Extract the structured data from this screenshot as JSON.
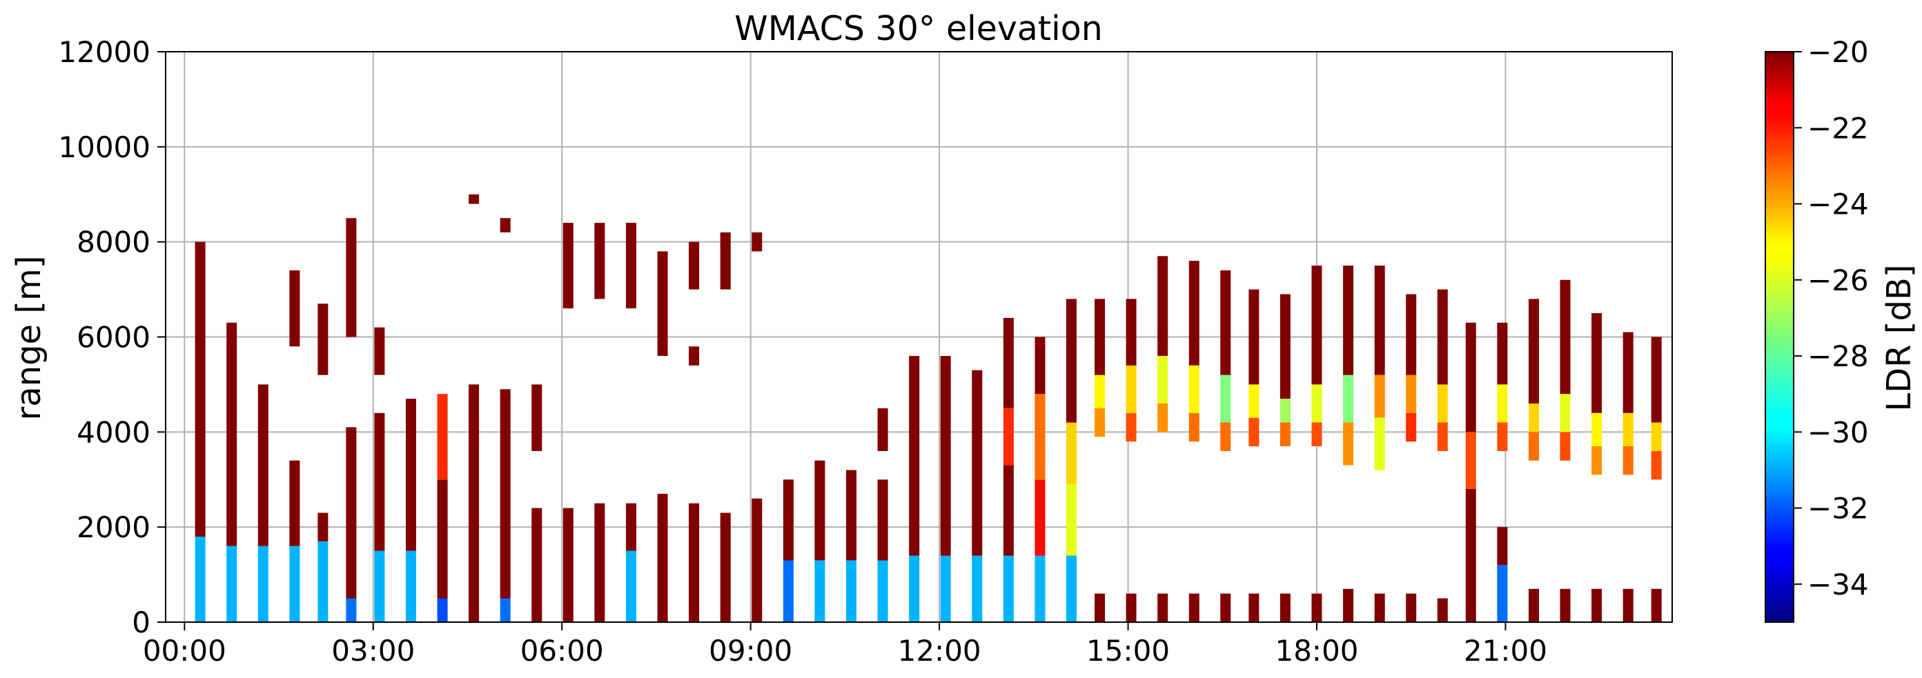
{
  "chart_data": {
    "type": "heatmap",
    "title": "WMACS 30° elevation",
    "xlabel": "",
    "ylabel": "range [m]",
    "x_ticks": [
      {
        "hour": 0,
        "label": "00:00"
      },
      {
        "hour": 3,
        "label": "03:00"
      },
      {
        "hour": 6,
        "label": "06:00"
      },
      {
        "hour": 9,
        "label": "09:00"
      },
      {
        "hour": 12,
        "label": "12:00"
      },
      {
        "hour": 15,
        "label": "15:00"
      },
      {
        "hour": 18,
        "label": "18:00"
      },
      {
        "hour": 21,
        "label": "21:00"
      }
    ],
    "xlim_hours": [
      -0.3,
      23.65
    ],
    "ylim": [
      0,
      12000
    ],
    "y_ticks": [
      {
        "value": 0,
        "label": "0"
      },
      {
        "value": 2000,
        "label": "2000"
      },
      {
        "value": 4000,
        "label": "4000"
      },
      {
        "value": 6000,
        "label": "6000"
      },
      {
        "value": 8000,
        "label": "8000"
      },
      {
        "value": 10000,
        "label": "10000"
      },
      {
        "value": 12000,
        "label": "12000"
      }
    ],
    "grid": true,
    "colorbar": {
      "label": "LDR [dB]",
      "range": [
        -35,
        -20
      ],
      "ticks": [
        {
          "value": -20,
          "label": "−20"
        },
        {
          "value": -22,
          "label": "−22"
        },
        {
          "value": -24,
          "label": "−24"
        },
        {
          "value": -26,
          "label": "−26"
        },
        {
          "value": -28,
          "label": "−28"
        },
        {
          "value": -30,
          "label": "−30"
        },
        {
          "value": -32,
          "label": "−32"
        },
        {
          "value": -34,
          "label": "−34"
        }
      ]
    },
    "profiles_note": "approximate vertical scan columns; each segment is [start_m, end_m, LDR_dB]",
    "profiles": [
      {
        "t": 0.25,
        "segments": [
          [
            0,
            1800,
            -30.5
          ],
          [
            1800,
            8000,
            -20
          ]
        ]
      },
      {
        "t": 0.75,
        "segments": [
          [
            0,
            1600,
            -30.5
          ],
          [
            1600,
            6300,
            -20
          ]
        ]
      },
      {
        "t": 1.25,
        "segments": [
          [
            0,
            1600,
            -30.5
          ],
          [
            1600,
            5000,
            -20
          ]
        ]
      },
      {
        "t": 1.75,
        "segments": [
          [
            0,
            1600,
            -30.5
          ],
          [
            1600,
            3400,
            -20
          ],
          [
            5800,
            7400,
            -20
          ]
        ]
      },
      {
        "t": 2.2,
        "segments": [
          [
            0,
            1700,
            -30.5
          ],
          [
            1700,
            2300,
            -20
          ],
          [
            5200,
            6700,
            -20
          ]
        ]
      },
      {
        "t": 2.65,
        "segments": [
          [
            0,
            500,
            -31.5
          ],
          [
            500,
            4100,
            -20
          ],
          [
            6000,
            8500,
            -20
          ]
        ]
      },
      {
        "t": 3.1,
        "segments": [
          [
            0,
            1500,
            -30.5
          ],
          [
            1500,
            4400,
            -20
          ],
          [
            5200,
            6200,
            -20
          ]
        ]
      },
      {
        "t": 3.6,
        "segments": [
          [
            0,
            1500,
            -30.5
          ],
          [
            1500,
            4700,
            -20
          ]
        ]
      },
      {
        "t": 4.1,
        "segments": [
          [
            0,
            500,
            -32
          ],
          [
            500,
            3000,
            -20
          ],
          [
            3000,
            4800,
            -22.5
          ]
        ]
      },
      {
        "t": 4.6,
        "segments": [
          [
            0,
            5000,
            -20
          ],
          [
            8800,
            9000,
            -20
          ]
        ]
      },
      {
        "t": 5.1,
        "segments": [
          [
            0,
            500,
            -31.5
          ],
          [
            500,
            4900,
            -20
          ],
          [
            8200,
            8500,
            -20
          ]
        ]
      },
      {
        "t": 5.6,
        "segments": [
          [
            0,
            2400,
            -20
          ],
          [
            3600,
            5000,
            -20
          ]
        ]
      },
      {
        "t": 6.1,
        "segments": [
          [
            0,
            2400,
            -20
          ],
          [
            6600,
            8400,
            -20
          ]
        ]
      },
      {
        "t": 6.6,
        "segments": [
          [
            0,
            2500,
            -20
          ],
          [
            6800,
            8400,
            -20
          ]
        ]
      },
      {
        "t": 7.1,
        "segments": [
          [
            0,
            1500,
            -30.5
          ],
          [
            1500,
            2500,
            -20
          ],
          [
            6600,
            8400,
            -20
          ]
        ]
      },
      {
        "t": 7.6,
        "segments": [
          [
            0,
            2700,
            -20
          ],
          [
            5600,
            7800,
            -20
          ]
        ]
      },
      {
        "t": 8.1,
        "segments": [
          [
            0,
            2500,
            -20
          ],
          [
            5400,
            5800,
            -20
          ],
          [
            7000,
            8000,
            -20
          ]
        ]
      },
      {
        "t": 8.6,
        "segments": [
          [
            0,
            2300,
            -20
          ],
          [
            7000,
            8200,
            -20
          ]
        ]
      },
      {
        "t": 9.1,
        "segments": [
          [
            0,
            2600,
            -20
          ],
          [
            7800,
            8200,
            -20
          ]
        ]
      },
      {
        "t": 9.6,
        "segments": [
          [
            0,
            1300,
            -31.5
          ],
          [
            1300,
            3000,
            -20
          ]
        ]
      },
      {
        "t": 10.1,
        "segments": [
          [
            0,
            1300,
            -30.5
          ],
          [
            1300,
            3400,
            -20
          ]
        ]
      },
      {
        "t": 10.6,
        "segments": [
          [
            0,
            1300,
            -30.5
          ],
          [
            1300,
            3200,
            -20
          ]
        ]
      },
      {
        "t": 11.1,
        "segments": [
          [
            0,
            1300,
            -30.5
          ],
          [
            1300,
            3000,
            -20
          ],
          [
            3600,
            4500,
            -20
          ]
        ]
      },
      {
        "t": 11.6,
        "segments": [
          [
            0,
            1400,
            -30.5
          ],
          [
            1400,
            5600,
            -20
          ]
        ]
      },
      {
        "t": 12.1,
        "segments": [
          [
            0,
            1400,
            -30.5
          ],
          [
            1400,
            5600,
            -20
          ]
        ]
      },
      {
        "t": 12.6,
        "segments": [
          [
            0,
            1400,
            -30.5
          ],
          [
            1400,
            5300,
            -20
          ]
        ]
      },
      {
        "t": 13.1,
        "segments": [
          [
            0,
            1400,
            -30.5
          ],
          [
            1400,
            3300,
            -20
          ],
          [
            3300,
            4500,
            -22.5
          ],
          [
            4500,
            6400,
            -20
          ]
        ]
      },
      {
        "t": 13.6,
        "segments": [
          [
            0,
            1400,
            -30.5
          ],
          [
            1400,
            3000,
            -22
          ],
          [
            3000,
            4800,
            -23.5
          ],
          [
            4800,
            6000,
            -20
          ]
        ]
      },
      {
        "t": 14.1,
        "segments": [
          [
            0,
            1400,
            -30.5
          ],
          [
            1400,
            2900,
            -26
          ],
          [
            2900,
            4200,
            -25
          ],
          [
            4200,
            6800,
            -20
          ]
        ]
      },
      {
        "t": 14.55,
        "segments": [
          [
            0,
            600,
            -20
          ],
          [
            3900,
            4500,
            -24
          ],
          [
            4500,
            5200,
            -25.5
          ],
          [
            5200,
            6800,
            -20
          ]
        ]
      },
      {
        "t": 15.05,
        "segments": [
          [
            0,
            600,
            -20
          ],
          [
            3800,
            4400,
            -23
          ],
          [
            4400,
            5400,
            -25
          ],
          [
            5400,
            6800,
            -20
          ]
        ]
      },
      {
        "t": 15.55,
        "segments": [
          [
            0,
            600,
            -20
          ],
          [
            4000,
            4600,
            -24
          ],
          [
            4600,
            5600,
            -26
          ],
          [
            5600,
            7700,
            -20
          ]
        ]
      },
      {
        "t": 16.05,
        "segments": [
          [
            0,
            600,
            -20
          ],
          [
            3800,
            4400,
            -23.5
          ],
          [
            4400,
            5400,
            -25.5
          ],
          [
            5400,
            7600,
            -20
          ]
        ]
      },
      {
        "t": 16.55,
        "segments": [
          [
            0,
            600,
            -20
          ],
          [
            3600,
            4200,
            -23.5
          ],
          [
            4200,
            5200,
            -27.5
          ],
          [
            5200,
            7400,
            -20
          ]
        ]
      },
      {
        "t": 17.0,
        "segments": [
          [
            0,
            600,
            -20
          ],
          [
            3700,
            4300,
            -23
          ],
          [
            4300,
            5000,
            -25.5
          ],
          [
            5000,
            7000,
            -20
          ]
        ]
      },
      {
        "t": 17.5,
        "segments": [
          [
            0,
            600,
            -20
          ],
          [
            3700,
            4200,
            -23.5
          ],
          [
            4200,
            4700,
            -27
          ],
          [
            4700,
            6900,
            -20
          ]
        ]
      },
      {
        "t": 18.0,
        "segments": [
          [
            0,
            600,
            -20
          ],
          [
            3700,
            4200,
            -23
          ],
          [
            4200,
            5000,
            -26
          ],
          [
            5000,
            7500,
            -20
          ]
        ]
      },
      {
        "t": 18.5,
        "segments": [
          [
            0,
            700,
            -20
          ],
          [
            3300,
            4200,
            -24
          ],
          [
            4200,
            5200,
            -27.5
          ],
          [
            5200,
            7500,
            -20
          ]
        ]
      },
      {
        "t": 19.0,
        "segments": [
          [
            0,
            600,
            -20
          ],
          [
            3200,
            4300,
            -26
          ],
          [
            4300,
            5200,
            -24
          ],
          [
            5200,
            7500,
            -20
          ]
        ]
      },
      {
        "t": 19.5,
        "segments": [
          [
            0,
            600,
            -20
          ],
          [
            3800,
            4400,
            -22.5
          ],
          [
            4400,
            5200,
            -24
          ],
          [
            5200,
            6900,
            -20
          ]
        ]
      },
      {
        "t": 20.0,
        "segments": [
          [
            0,
            500,
            -20
          ],
          [
            3600,
            4200,
            -23
          ],
          [
            4200,
            5000,
            -25
          ],
          [
            5000,
            7000,
            -20
          ]
        ]
      },
      {
        "t": 20.45,
        "segments": [
          [
            0,
            2800,
            -20
          ],
          [
            2800,
            4000,
            -23
          ],
          [
            4000,
            6300,
            -20
          ]
        ]
      },
      {
        "t": 20.95,
        "segments": [
          [
            0,
            1200,
            -31.5
          ],
          [
            1200,
            2000,
            -20
          ],
          [
            3600,
            4200,
            -23
          ],
          [
            4200,
            5000,
            -25.5
          ],
          [
            5000,
            6300,
            -20
          ]
        ]
      },
      {
        "t": 21.45,
        "segments": [
          [
            0,
            700,
            -20
          ],
          [
            3400,
            4000,
            -23.5
          ],
          [
            4000,
            4600,
            -25
          ],
          [
            4600,
            6800,
            -20
          ]
        ]
      },
      {
        "t": 21.95,
        "segments": [
          [
            0,
            700,
            -20
          ],
          [
            3400,
            4000,
            -23
          ],
          [
            4000,
            4800,
            -26
          ],
          [
            4800,
            7200,
            -20
          ]
        ]
      },
      {
        "t": 22.45,
        "segments": [
          [
            0,
            700,
            -20
          ],
          [
            3100,
            3700,
            -24
          ],
          [
            3700,
            4400,
            -25.5
          ],
          [
            4400,
            6500,
            -20
          ]
        ]
      },
      {
        "t": 22.95,
        "segments": [
          [
            0,
            700,
            -20
          ],
          [
            3100,
            3700,
            -23.5
          ],
          [
            3700,
            4400,
            -25
          ],
          [
            4400,
            6100,
            -20
          ]
        ]
      },
      {
        "t": 23.4,
        "segments": [
          [
            0,
            700,
            -20
          ],
          [
            3000,
            3600,
            -23
          ],
          [
            3600,
            4200,
            -25
          ],
          [
            4200,
            6000,
            -20
          ]
        ]
      }
    ]
  }
}
